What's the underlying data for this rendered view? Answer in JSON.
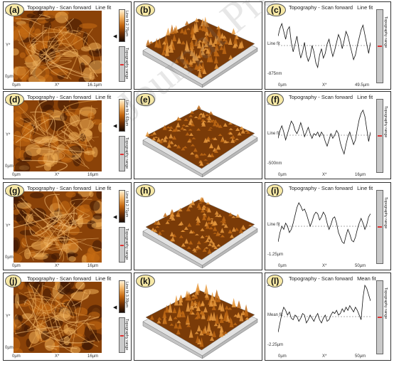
{
  "rows": [
    {
      "topo": {
        "label": "(a)",
        "title": "Topography - Scan forward",
        "mode": "Line fit",
        "x_start": "0µm",
        "x_mid": "X*",
        "x_end": "16.1µm",
        "y_top": "16.1µm",
        "y_mid": "Y*",
        "y_bot": "0µm",
        "cbar_label": "Line fit 2.75µm",
        "range_label": "Topography range"
      },
      "d3": {
        "label": "(b)"
      },
      "profile": {
        "label": "(c)",
        "title": "Topography - Scan forward",
        "mode": "Line fit",
        "y_top": "875nm",
        "y_mid": "Line fit",
        "y_bot": "-875nm",
        "x_start": "0µm",
        "x_mid": "X*",
        "x_end": "49.5µm",
        "range_label": "Topography range",
        "values": [
          0.3,
          0.55,
          0.7,
          0.45,
          0.2,
          0.5,
          0.6,
          0.1,
          -0.2,
          0.05,
          0.3,
          -0.1,
          -0.4,
          -0.2,
          0.1,
          -0.3,
          -0.5,
          -0.35,
          0.0,
          -0.2,
          -0.55,
          -0.7,
          -0.3,
          -0.1,
          -0.4,
          -0.25,
          0.05,
          0.2,
          -0.1,
          -0.35,
          -0.15,
          0.1,
          0.35,
          0.2,
          -0.1,
          0.15,
          0.45,
          0.3,
          0.05,
          -0.2,
          -0.45,
          -0.3,
          0.0,
          0.25,
          0.5,
          0.65,
          0.35,
          0.05,
          -0.25,
          0.1
        ]
      }
    },
    {
      "topo": {
        "label": "(d)",
        "title": "Topography - Scan forward",
        "mode": "Line fit",
        "x_start": "0µm",
        "x_mid": "X*",
        "x_end": "16µm",
        "y_top": "16µm",
        "y_mid": "Y*",
        "y_bot": "0µm",
        "cbar_label": "Line fit 1.63µm",
        "range_label": "Topography range"
      },
      "d3": {
        "label": "(e)"
      },
      "profile": {
        "label": "(f)",
        "title": "Topography - Scan forward",
        "mode": "Line fit",
        "y_top": "500nm",
        "y_mid": "Line fit",
        "y_bot": "-500nm",
        "x_start": "0µm",
        "x_mid": "X*",
        "x_end": "16µm",
        "range_label": "Topography range",
        "values": [
          -0.1,
          0.15,
          0.3,
          0.1,
          -0.15,
          0.05,
          0.25,
          0.45,
          0.35,
          0.15,
          0.05,
          0.2,
          0.4,
          0.2,
          -0.05,
          0.1,
          0.25,
          0.05,
          -0.1,
          0.05,
          0.0,
          0.1,
          -0.05,
          0.1,
          0.0,
          -0.2,
          -0.35,
          -0.15,
          0.05,
          -0.1,
          0.0,
          0.15,
          0.05,
          -0.25,
          -0.45,
          -0.6,
          -0.3,
          -0.05,
          0.1,
          -0.1,
          -0.3,
          -0.15,
          0.2,
          0.5,
          0.7,
          0.8,
          0.6,
          0.2,
          -0.2,
          0.1
        ]
      }
    },
    {
      "topo": {
        "label": "(g)",
        "title": "Topography - Scan forward",
        "mode": "Line fit",
        "x_start": "0µm",
        "x_mid": "X*",
        "x_end": "16µm",
        "y_top": "16µm",
        "y_mid": "Y*",
        "y_bot": "0µm",
        "cbar_label": "Line fit 2.71µm",
        "range_label": "Topography range"
      },
      "d3": {
        "label": "(h)"
      },
      "profile": {
        "label": "(i)",
        "title": "Topography - Scan forward",
        "mode": "Line fit",
        "y_top": "1.25µm",
        "y_mid": "Line fit",
        "y_bot": "-1.25µm",
        "x_start": "0µm",
        "x_mid": "X*",
        "x_end": "50µm",
        "range_label": "Topography range",
        "values": [
          -0.5,
          -0.2,
          0.0,
          -0.1,
          0.1,
          0.0,
          -0.2,
          -0.1,
          0.1,
          0.35,
          0.6,
          0.75,
          0.65,
          0.5,
          0.55,
          0.4,
          0.2,
          0.0,
          0.15,
          0.35,
          0.45,
          0.4,
          0.2,
          0.3,
          0.45,
          0.35,
          0.1,
          -0.1,
          0.05,
          0.25,
          0.3,
          0.1,
          -0.2,
          -0.35,
          -0.5,
          -0.55,
          -0.3,
          -0.1,
          -0.25,
          -0.45,
          -0.5,
          -0.35,
          -0.1,
          0.1,
          0.25,
          0.1,
          -0.1,
          0.05,
          0.3,
          0.4
        ]
      }
    },
    {
      "topo": {
        "label": "(j)",
        "title": "Topography - Scan forward",
        "mode": "Line fit",
        "x_start": "0µm",
        "x_mid": "X*",
        "x_end": "16µm",
        "y_top": "16µm",
        "y_mid": "Y*",
        "y_bot": "0µm",
        "cbar_label": "Line fit 3.39µm",
        "range_label": "Topography range"
      },
      "d3": {
        "label": "(k)"
      },
      "profile": {
        "label": "(l)",
        "title": "Topography - Scan forward",
        "mode": "Mean fit",
        "y_top": "2.25µm",
        "y_mid": "Mean fit",
        "y_bot": "-2.25µm",
        "x_start": "0µm",
        "x_mid": "X*",
        "x_end": "50µm",
        "range_label": "Topography range",
        "values": [
          -0.5,
          -0.2,
          0.1,
          0.3,
          0.2,
          0.05,
          0.15,
          -0.05,
          -0.1,
          0.05,
          0.0,
          -0.15,
          -0.05,
          0.1,
          0.05,
          -0.2,
          -0.1,
          0.05,
          -0.05,
          -0.15,
          0.0,
          0.1,
          -0.1,
          -0.2,
          -0.05,
          0.05,
          -0.15,
          -0.1,
          0.05,
          0.15,
          0.1,
          0.2,
          0.05,
          0.1,
          0.25,
          0.15,
          0.3,
          0.2,
          0.35,
          0.25,
          0.15,
          0.3,
          0.2,
          0.05,
          -0.1,
          0.6,
          1.0,
          0.9,
          0.7,
          0.5
        ]
      }
    }
  ],
  "watermark": "Journal Pre-proof"
}
